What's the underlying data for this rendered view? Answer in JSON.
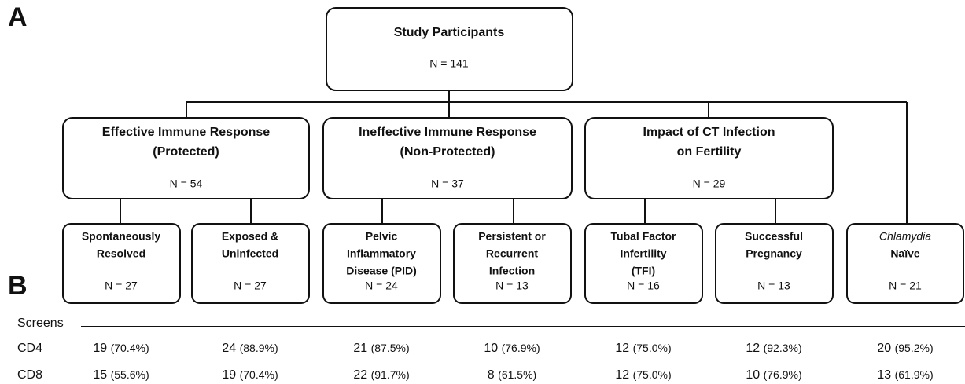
{
  "panels": {
    "a": "A",
    "b": "B"
  },
  "root": {
    "title": "Study Participants",
    "n": "N = 141"
  },
  "groups": [
    {
      "lines": [
        "Effective Immune Response",
        "(Protected)"
      ],
      "n": "N = 54"
    },
    {
      "lines": [
        "Ineffective Immune Response",
        "(Non-Protected)"
      ],
      "n": "N = 37"
    },
    {
      "lines": [
        "Impact of CT Infection",
        "on Fertility"
      ],
      "n": "N = 29"
    }
  ],
  "subgroups": [
    {
      "lines": [
        "Spontaneously",
        "Resolved"
      ],
      "n": "N = 27"
    },
    {
      "lines": [
        "Exposed &",
        "Uninfected"
      ],
      "n": "N = 27"
    },
    {
      "lines": [
        "Pelvic",
        "Inflammatory",
        "Disease (PID)"
      ],
      "n": "N = 24"
    },
    {
      "lines": [
        "Persistent or",
        "Recurrent",
        "Infection"
      ],
      "n": "N = 13"
    },
    {
      "lines": [
        "Tubal Factor",
        "Infertility",
        "(TFI)"
      ],
      "n": "N = 16"
    },
    {
      "lines": [
        "Successful",
        "Pregnancy"
      ],
      "n": "N = 13"
    },
    {
      "lines": [
        "Chlamydia",
        "Naïve"
      ],
      "n": "N = 21"
    }
  ],
  "table": {
    "header": "Screens",
    "rows": [
      {
        "label": "CD4",
        "cells": [
          {
            "count": 19,
            "pct": "(70.4%)"
          },
          {
            "count": 24,
            "pct": "(88.9%)"
          },
          {
            "count": 21,
            "pct": "(87.5%)"
          },
          {
            "count": 10,
            "pct": "(76.9%)"
          },
          {
            "count": 12,
            "pct": "(75.0%)"
          },
          {
            "count": 12,
            "pct": "(92.3%)"
          },
          {
            "count": 20,
            "pct": "(95.2%)"
          }
        ]
      },
      {
        "label": "CD8",
        "cells": [
          {
            "count": 15,
            "pct": "(55.6%)"
          },
          {
            "count": 19,
            "pct": "(70.4%)"
          },
          {
            "count": 22,
            "pct": "(91.7%)"
          },
          {
            "count": 8,
            "pct": "(61.5%)"
          },
          {
            "count": 12,
            "pct": "(75.0%)"
          },
          {
            "count": 10,
            "pct": "(76.9%)"
          },
          {
            "count": 13,
            "pct": "(61.9%)"
          }
        ]
      }
    ]
  }
}
